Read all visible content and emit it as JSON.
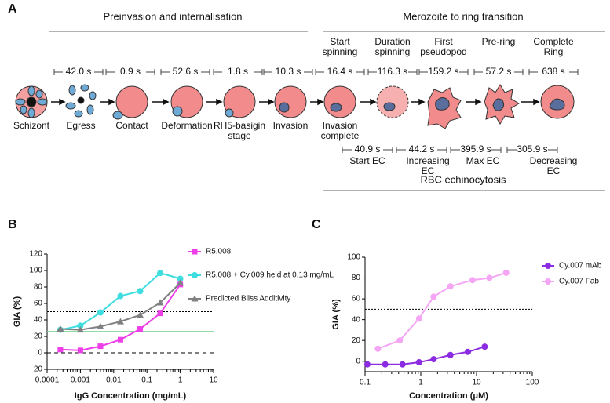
{
  "diagram": {
    "label": "A",
    "headers": [
      "Preinvasion and internalisation",
      "Merozoite to ring transition",
      "RBC echinocytosis"
    ],
    "events": [
      [
        "Start",
        "spinning"
      ],
      [
        "Duration",
        "spinning"
      ],
      [
        "First",
        "pseudopod"
      ],
      [
        "Pre-ring"
      ],
      [
        "Complete",
        "Ring"
      ]
    ],
    "durations": [
      "42.0 s",
      "0.9 s",
      "52.6 s",
      "1.8 s",
      "10.3 s",
      "16.4 s",
      "116.3 s",
      "159.2 s",
      "57.2 s",
      "638 s"
    ],
    "stages": [
      [
        "Schizont"
      ],
      [
        "Egress"
      ],
      [
        "Contact"
      ],
      [
        "Deformation"
      ],
      [
        "RH5-basigin",
        "stage"
      ],
      [
        "Invasion"
      ],
      [
        "Invasion",
        "complete"
      ]
    ],
    "ec_durations": [
      "40.9 s",
      "44.2 s",
      "395.9 s",
      "305.9 s"
    ],
    "ec_stages": [
      [
        "Start EC"
      ],
      [
        "Increasing",
        "EC"
      ],
      [
        "Max EC"
      ],
      [
        "Decreasing",
        "EC"
      ]
    ]
  },
  "chart_data": [
    {
      "type": "line",
      "label": "B",
      "xlabel": "IgG Concentration (mg/mL)",
      "ylabel": "GIA (%)",
      "xscale": "log",
      "xlim": [
        0.0001,
        10
      ],
      "xticks": [
        0.0001,
        0.001,
        0.01,
        0.1,
        1,
        10
      ],
      "ylim": [
        -20,
        120
      ],
      "yticks": [
        -20,
        0,
        20,
        40,
        60,
        80,
        100,
        120
      ],
      "x": [
        0.00025,
        0.001,
        0.004,
        0.016,
        0.0625,
        0.25,
        1
      ],
      "series": [
        {
          "name": "R5.008",
          "color": "#ee3ee8",
          "marker": "square",
          "values": [
            4,
            3,
            8,
            16,
            29,
            48,
            83
          ]
        },
        {
          "name": "R5.008 + Cy.009 held at 0.13 mg/mL",
          "color": "#3fdde0",
          "marker": "circle",
          "values": [
            28,
            33,
            49,
            69,
            75,
            97,
            90
          ]
        },
        {
          "name": "Predicted Bliss Additivity",
          "color": "#808080",
          "marker": "triangle",
          "values": [
            29,
            28,
            32,
            38,
            46,
            61,
            85
          ]
        }
      ],
      "reference_lines": [
        {
          "value": 50,
          "color": "#000000",
          "dash": "2,2"
        },
        {
          "value": 26,
          "color": "#6fcf8a",
          "dash": "none"
        },
        {
          "value": 0,
          "color": "#000000",
          "dash": "5,4"
        }
      ],
      "legend": "right"
    },
    {
      "type": "line",
      "label": "C",
      "xlabel": "Concentration (μM)",
      "ylabel": "GIA (%)",
      "xscale": "log",
      "xlim": [
        0.1,
        100
      ],
      "xticks": [
        0.1,
        1,
        10,
        100
      ],
      "ylim": [
        -10,
        100
      ],
      "yticks": [
        0,
        20,
        40,
        60,
        80,
        100
      ],
      "series": [
        {
          "name": "Cy.007 mAb",
          "color": "#8b2be2",
          "marker": "circle",
          "x": [
            0.11,
            0.23,
            0.47,
            0.93,
            1.7,
            3.4,
            7,
            14
          ],
          "values": [
            -3,
            -3,
            -3,
            -1,
            2,
            6,
            9,
            14
          ]
        },
        {
          "name": "Cy.007 Fab",
          "color": "#f4a6f4",
          "marker": "circle",
          "x": [
            0.17,
            0.42,
            0.93,
            1.7,
            3.4,
            8.5,
            17,
            34
          ],
          "values": [
            12,
            20,
            41,
            62,
            72,
            78,
            80,
            85
          ]
        }
      ],
      "reference_lines": [
        {
          "value": 50,
          "color": "#000000",
          "dash": "2,2"
        }
      ],
      "legend": "right"
    }
  ]
}
